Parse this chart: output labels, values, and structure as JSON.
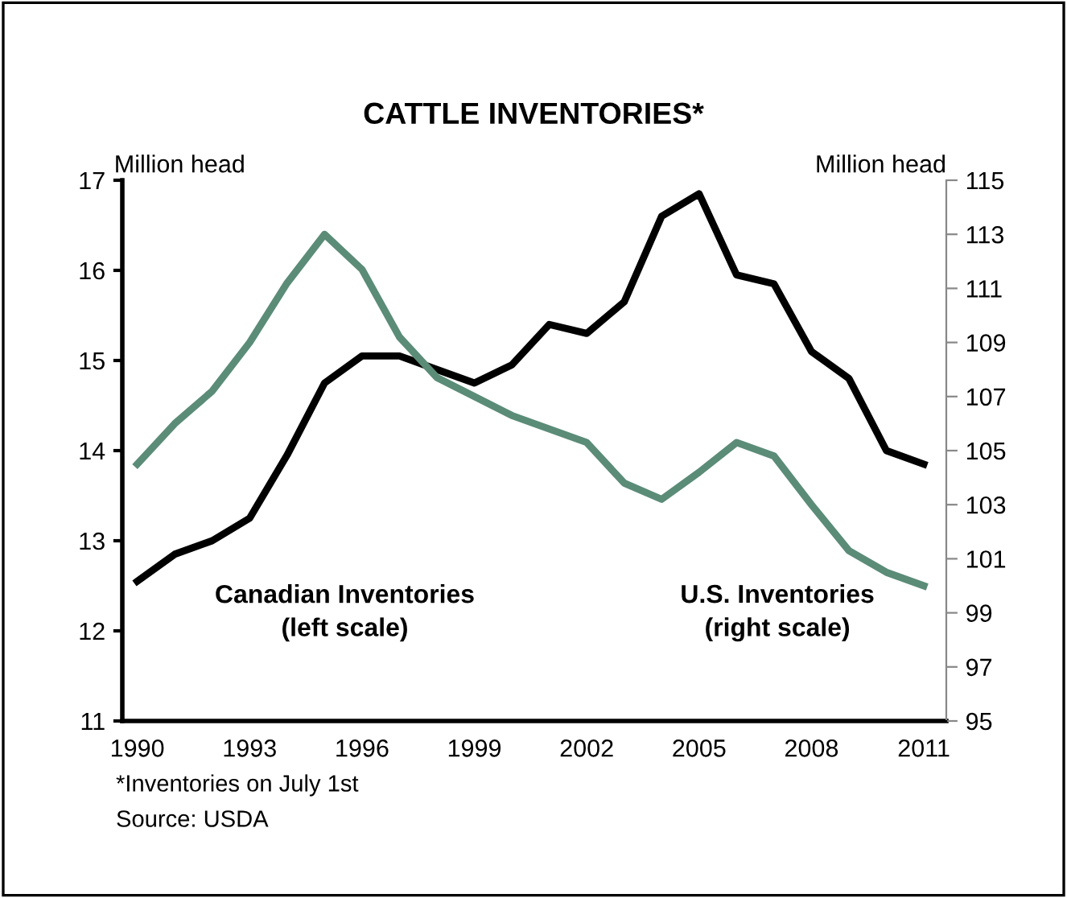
{
  "chart_data": {
    "type": "line",
    "title": "CATTLE INVENTORIES*",
    "ylabel": "Million head",
    "y2label": "Million head",
    "x": [
      1990,
      1991,
      1992,
      1993,
      1994,
      1995,
      1996,
      1997,
      1998,
      1999,
      2000,
      2001,
      2002,
      2003,
      2004,
      2005,
      2006,
      2007,
      2008,
      2009,
      2010,
      2011
    ],
    "series": [
      {
        "color": "#000000",
        "values": [
          12.55,
          12.85,
          13.0,
          13.25,
          13.95,
          14.75,
          15.05,
          15.05,
          14.9,
          14.75,
          14.95,
          15.4,
          15.3,
          15.65,
          16.6,
          16.85,
          15.95,
          15.85,
          15.1,
          14.8,
          14.0,
          13.85
        ]
      },
      {
        "color": "#5b8c78",
        "axis": "y2",
        "values": [
          104.5,
          106.0,
          107.2,
          109.0,
          111.2,
          113.0,
          111.7,
          109.2,
          107.7,
          107.0,
          106.3,
          105.8,
          105.3,
          103.8,
          103.2,
          104.2,
          105.3,
          104.8,
          103.0,
          101.3,
          100.5,
          100.0
        ]
      }
    ],
    "xlim": [
      1989.6,
      2011.6
    ],
    "xticks": [
      1990,
      1993,
      1996,
      1999,
      2002,
      2005,
      2008,
      2011
    ],
    "ylim": [
      11,
      17
    ],
    "yticks": [
      11,
      12,
      13,
      14,
      15,
      16,
      17
    ],
    "y2lim": [
      95,
      115
    ],
    "y2ticks": [
      95,
      97,
      99,
      101,
      103,
      105,
      107,
      109,
      111,
      113,
      115
    ],
    "grid": false,
    "legend": false,
    "marker": "none",
    "line_style": "solid",
    "annotations": [
      "Canadian Inventories\n(left scale)",
      "U.S. Inventories\n(right scale)",
      "*Inventories on July 1st",
      "Source: USDA"
    ]
  }
}
